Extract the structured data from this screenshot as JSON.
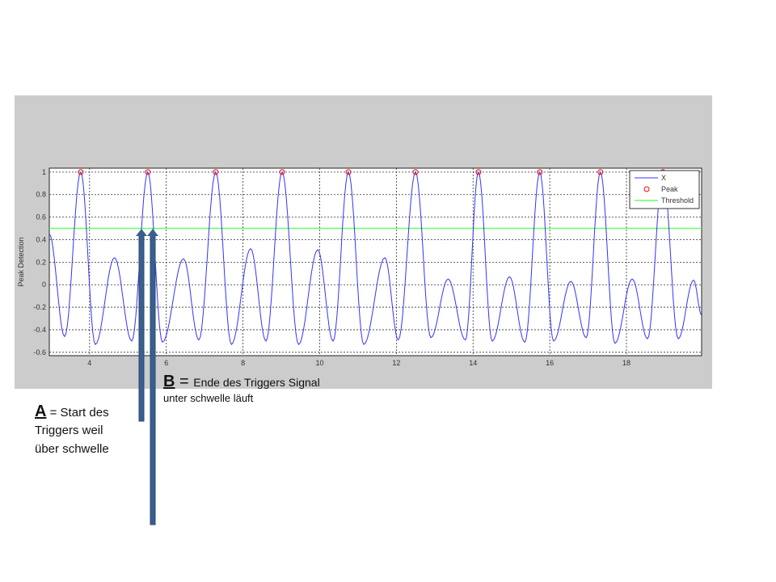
{
  "chart_data": {
    "type": "line",
    "title": "",
    "xlabel": "",
    "ylabel": "Peak Detection",
    "xlim": [
      2.95,
      19.96
    ],
    "ylim": [
      -0.63,
      1.035
    ],
    "xticks": [
      4,
      6,
      8,
      10,
      12,
      14,
      16,
      18
    ],
    "yticks": [
      -0.6,
      -0.4,
      -0.2,
      0,
      0.2,
      0.4,
      0.6,
      0.8,
      1
    ],
    "grid": true,
    "legend": {
      "placement": "top-right",
      "entries": [
        "X",
        "Peak",
        "Threshold"
      ]
    },
    "series": [
      {
        "name": "X",
        "type": "line",
        "color": "#3333ff",
        "extrema": [
          [
            2.95,
            0.45
          ],
          [
            3.35,
            -0.46
          ],
          [
            3.77,
            1
          ],
          [
            4.15,
            -0.53
          ],
          [
            4.65,
            0.24
          ],
          [
            5.1,
            -0.5
          ],
          [
            5.52,
            1
          ],
          [
            5.9,
            -0.51
          ],
          [
            6.45,
            0.23
          ],
          [
            6.85,
            -0.49
          ],
          [
            7.29,
            1
          ],
          [
            7.7,
            -0.53
          ],
          [
            8.2,
            0.32
          ],
          [
            8.6,
            -0.5
          ],
          [
            9.02,
            1
          ],
          [
            9.45,
            -0.53
          ],
          [
            9.95,
            0.31
          ],
          [
            10.35,
            -0.5
          ],
          [
            10.75,
            1
          ],
          [
            11.15,
            -0.53
          ],
          [
            11.7,
            0.24
          ],
          [
            12.05,
            -0.49
          ],
          [
            12.5,
            1
          ],
          [
            12.9,
            -0.47
          ],
          [
            13.35,
            0.05
          ],
          [
            13.8,
            -0.49
          ],
          [
            14.14,
            1
          ],
          [
            14.5,
            -0.5
          ],
          [
            14.95,
            0.07
          ],
          [
            15.35,
            -0.51
          ],
          [
            15.74,
            1
          ],
          [
            16.1,
            -0.5
          ],
          [
            16.55,
            0.03
          ],
          [
            16.95,
            -0.47
          ],
          [
            17.32,
            1
          ],
          [
            17.7,
            -0.52
          ],
          [
            18.15,
            0.05
          ],
          [
            18.55,
            -0.48
          ],
          [
            18.95,
            1
          ],
          [
            19.35,
            -0.48
          ],
          [
            19.75,
            0.04
          ],
          [
            19.96,
            -0.27
          ]
        ]
      },
      {
        "name": "Peak",
        "type": "scatter",
        "color": "#ff0000",
        "marker": "circle",
        "x": [
          3.77,
          5.52,
          7.29,
          9.02,
          10.75,
          12.5,
          14.14,
          15.74,
          17.32,
          18.95
        ],
        "y": [
          1,
          1,
          1,
          1,
          1,
          1,
          1,
          1,
          1,
          1
        ]
      },
      {
        "name": "Threshold",
        "type": "line",
        "color": "#66ff66",
        "y": 0.5
      }
    ]
  },
  "annotations": {
    "arrow_color": "#3a5f8f",
    "a": {
      "letter": "A",
      "text_line1": " = Start des",
      "text_line2": "Triggers weil",
      "text_line3": "über schwelle",
      "x": 5.3
    },
    "b": {
      "letter": "B",
      "text_line1": " = ",
      "text_line1b": "Ende  des Triggers Signal",
      "text_line2": "unter schwelle läuft",
      "x": 5.6
    }
  }
}
